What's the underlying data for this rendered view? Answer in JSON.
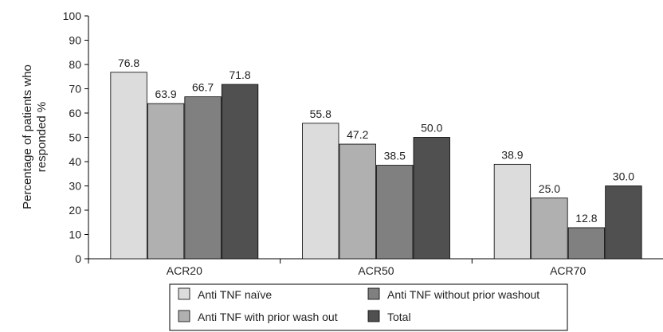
{
  "chart_data": {
    "type": "bar",
    "ylabel": "Percentage of patients who responded %",
    "ylabel_lines": [
      "Percentage of patients who",
      "responded %"
    ],
    "ylim": [
      0,
      100
    ],
    "yticks": [
      0,
      10,
      20,
      30,
      40,
      50,
      60,
      70,
      80,
      90,
      100
    ],
    "grid": false,
    "legend_position": "bottom",
    "categories": [
      "ACR20",
      "ACR50",
      "ACR70"
    ],
    "series": [
      {
        "name": "Anti TNF naïve",
        "color": "#dcdcdc",
        "values": [
          76.8,
          55.8,
          38.9
        ]
      },
      {
        "name": "Anti TNF with prior wash out",
        "color": "#b0b0b0",
        "values": [
          63.9,
          47.2,
          25.0
        ]
      },
      {
        "name": "Anti TNF without prior washout",
        "color": "#808080",
        "values": [
          66.7,
          38.5,
          12.8
        ]
      },
      {
        "name": "Total",
        "color": "#505050",
        "values": [
          71.8,
          50.0,
          30.0
        ]
      }
    ],
    "legend_order": [
      0,
      2,
      1,
      3
    ]
  }
}
